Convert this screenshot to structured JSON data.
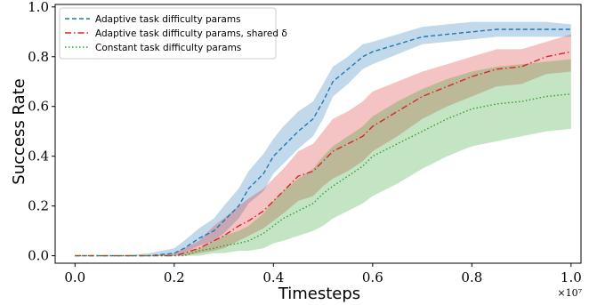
{
  "chart_data": {
    "type": "line",
    "title": "",
    "xlabel": "Timesteps",
    "ylabel": "Success Rate",
    "x_multiplier_label": "×10⁷",
    "x_tick_labels": [
      "0.0",
      "0.2",
      "0.4",
      "0.6",
      "0.8",
      "1.0"
    ],
    "y_tick_labels": [
      "0.0",
      "0.2",
      "0.4",
      "0.6",
      "0.8",
      "1.0"
    ],
    "xlim": [
      -0.04,
      1.02
    ],
    "ylim": [
      -0.03,
      1.01
    ],
    "x_ticks": [
      0.0,
      0.2,
      0.4,
      0.6,
      0.8,
      1.0
    ],
    "y_ticks": [
      0.0,
      0.2,
      0.4,
      0.6,
      0.8,
      1.0
    ],
    "grid": false,
    "legend_position": "upper-left",
    "x": [
      0.0,
      0.1,
      0.15,
      0.2,
      0.22,
      0.25,
      0.28,
      0.3,
      0.33,
      0.35,
      0.38,
      0.4,
      0.42,
      0.45,
      0.48,
      0.5,
      0.52,
      0.55,
      0.58,
      0.6,
      0.65,
      0.7,
      0.75,
      0.8,
      0.85,
      0.9,
      0.95,
      1.0
    ],
    "series": [
      {
        "name": "Adaptive task difficulty params",
        "color": "#1f77b4",
        "linestyle": "dashed",
        "values": [
          0.0,
          0.0,
          0.0,
          0.01,
          0.03,
          0.07,
          0.1,
          0.14,
          0.2,
          0.27,
          0.33,
          0.4,
          0.44,
          0.5,
          0.55,
          0.62,
          0.7,
          0.75,
          0.8,
          0.82,
          0.85,
          0.88,
          0.89,
          0.9,
          0.91,
          0.91,
          0.91,
          0.91
        ],
        "lower": [
          0.0,
          0.0,
          0.0,
          0.0,
          0.01,
          0.04,
          0.06,
          0.09,
          0.15,
          0.21,
          0.26,
          0.33,
          0.37,
          0.43,
          0.48,
          0.55,
          0.64,
          0.69,
          0.75,
          0.77,
          0.81,
          0.85,
          0.86,
          0.87,
          0.88,
          0.88,
          0.88,
          0.88
        ],
        "upper": [
          0.0,
          0.0,
          0.01,
          0.03,
          0.06,
          0.11,
          0.15,
          0.2,
          0.27,
          0.34,
          0.41,
          0.47,
          0.52,
          0.58,
          0.62,
          0.69,
          0.76,
          0.8,
          0.85,
          0.86,
          0.89,
          0.92,
          0.93,
          0.94,
          0.94,
          0.94,
          0.94,
          0.93
        ]
      },
      {
        "name": "Adaptive task difficulty params, shared δ",
        "color": "#d62728",
        "linestyle": "dashdot",
        "values": [
          0.0,
          0.0,
          0.0,
          0.0,
          0.01,
          0.03,
          0.06,
          0.08,
          0.12,
          0.14,
          0.18,
          0.22,
          0.26,
          0.32,
          0.34,
          0.38,
          0.42,
          0.45,
          0.48,
          0.52,
          0.58,
          0.64,
          0.68,
          0.72,
          0.75,
          0.76,
          0.8,
          0.82
        ],
        "lower": [
          0.0,
          0.0,
          0.0,
          0.0,
          0.0,
          0.01,
          0.02,
          0.03,
          0.06,
          0.08,
          0.11,
          0.14,
          0.17,
          0.22,
          0.24,
          0.28,
          0.31,
          0.34,
          0.38,
          0.42,
          0.48,
          0.55,
          0.6,
          0.64,
          0.68,
          0.69,
          0.73,
          0.74
        ],
        "upper": [
          0.0,
          0.0,
          0.0,
          0.01,
          0.03,
          0.06,
          0.12,
          0.15,
          0.2,
          0.23,
          0.27,
          0.31,
          0.35,
          0.42,
          0.45,
          0.5,
          0.55,
          0.58,
          0.62,
          0.66,
          0.7,
          0.74,
          0.77,
          0.8,
          0.83,
          0.83,
          0.86,
          0.89
        ]
      },
      {
        "name": "Constant task difficulty params",
        "color": "#2ca02c",
        "linestyle": "dotted",
        "values": [
          0.0,
          0.0,
          0.0,
          0.0,
          0.0,
          0.02,
          0.03,
          0.04,
          0.05,
          0.06,
          0.09,
          0.12,
          0.15,
          0.18,
          0.21,
          0.25,
          0.28,
          0.32,
          0.36,
          0.4,
          0.45,
          0.5,
          0.55,
          0.59,
          0.61,
          0.62,
          0.64,
          0.65
        ],
        "lower": [
          0.0,
          0.0,
          0.0,
          0.0,
          0.0,
          0.0,
          0.01,
          0.01,
          0.02,
          0.02,
          0.03,
          0.05,
          0.06,
          0.08,
          0.1,
          0.12,
          0.15,
          0.18,
          0.21,
          0.24,
          0.29,
          0.35,
          0.4,
          0.44,
          0.46,
          0.48,
          0.5,
          0.51
        ],
        "upper": [
          0.0,
          0.0,
          0.0,
          0.0,
          0.01,
          0.03,
          0.06,
          0.08,
          0.1,
          0.12,
          0.17,
          0.22,
          0.26,
          0.31,
          0.35,
          0.4,
          0.44,
          0.48,
          0.52,
          0.56,
          0.62,
          0.67,
          0.71,
          0.74,
          0.76,
          0.77,
          0.78,
          0.79
        ]
      }
    ]
  }
}
